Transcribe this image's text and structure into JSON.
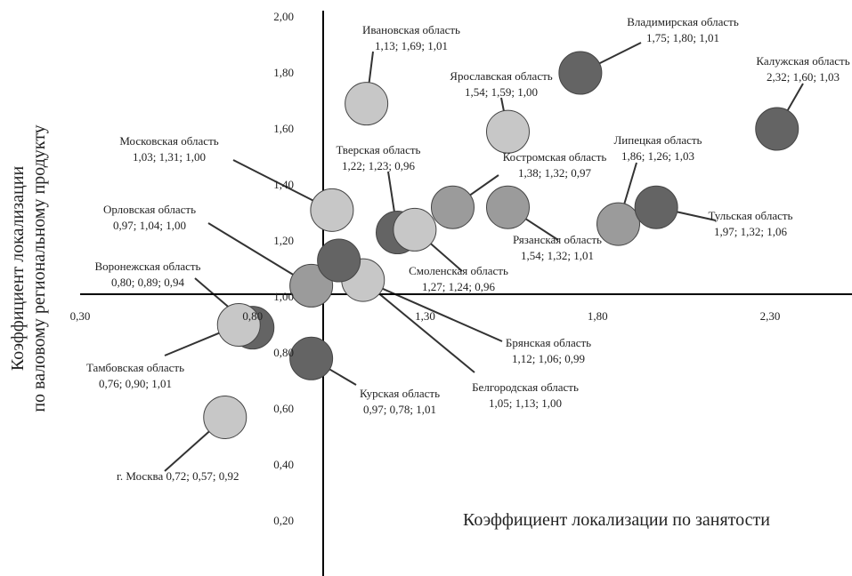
{
  "chart_data": {
    "type": "scatter",
    "xlabel": "Коэффициент локализации по занятости",
    "ylabel_lines": [
      "Коэффициент локализации",
      "по валовому региональному продукту"
    ],
    "xlim": [
      0.3,
      2.6
    ],
    "ylim": [
      0.0,
      2.0
    ],
    "x_ticks": [
      "0,30",
      "0,80",
      "1,30",
      "1,80",
      "2,30"
    ],
    "y_ticks": [
      "0,20",
      "0,40",
      "0,60",
      "0,80",
      "1,00",
      "1,20",
      "1,40",
      "1,60",
      "1,80",
      "2,00"
    ],
    "grid": false,
    "colors": {
      "light": "#c7c7c7",
      "mid": "#9b9b9b",
      "dark": "#646464",
      "outline": "#444444"
    },
    "points": [
      {
        "name": "Ивановская область",
        "values": "1,13; 1,69; 1,01",
        "x": 1.13,
        "y": 1.69,
        "shade": "light"
      },
      {
        "name": "Владимирская область",
        "values": "1,75; 1,80; 1,01",
        "x": 1.75,
        "y": 1.8,
        "shade": "dark"
      },
      {
        "name": "Калужская область",
        "values": "2,32; 1,60; 1,03",
        "x": 2.32,
        "y": 1.6,
        "shade": "dark"
      },
      {
        "name": "Ярославская область",
        "values": "1,54; 1,59; 1,00",
        "x": 1.54,
        "y": 1.59,
        "shade": "light"
      },
      {
        "name": "Московская область",
        "values": "1,03; 1,31; 1,00",
        "x": 1.03,
        "y": 1.31,
        "shade": "light"
      },
      {
        "name": "Тверская область",
        "values": "1,22; 1,23; 0,96",
        "x": 1.22,
        "y": 1.23,
        "shade": "dark"
      },
      {
        "name": "Костромская область",
        "values": "1,38; 1,32; 0,97",
        "x": 1.38,
        "y": 1.32,
        "shade": "mid"
      },
      {
        "name": "Липецкая область",
        "values": "1,86; 1,26; 1,03",
        "x": 1.86,
        "y": 1.26,
        "shade": "mid"
      },
      {
        "name": "Тульская область",
        "values": "1,97; 1,32; 1,06",
        "x": 1.97,
        "y": 1.32,
        "shade": "dark"
      },
      {
        "name": "Рязанская область",
        "values": "1,54; 1,32; 1,01",
        "x": 1.54,
        "y": 1.32,
        "shade": "mid"
      },
      {
        "name": "Смоленская область",
        "values": "1,27; 1,24; 0,96",
        "x": 1.27,
        "y": 1.24,
        "shade": "light"
      },
      {
        "name": "Орловская область",
        "values": "0,97; 1,04; 1,00",
        "x": 0.97,
        "y": 1.04,
        "shade": "mid"
      },
      {
        "name": "Воронежская область",
        "values": "0,80; 0,89; 0,94",
        "x": 0.8,
        "y": 0.89,
        "shade": "dark"
      },
      {
        "name": "Тамбовская область",
        "values": "0,76; 0,90; 1,01",
        "x": 0.76,
        "y": 0.9,
        "shade": "light"
      },
      {
        "name": "Брянская область",
        "values": "1,12; 1,06; 0,99",
        "x": 1.12,
        "y": 1.06,
        "shade": "light"
      },
      {
        "name": "Белгородская область",
        "values": "1,05; 1,13; 1,00",
        "x": 1.05,
        "y": 1.13,
        "shade": "dark"
      },
      {
        "name": "Курская область",
        "values": "0,97; 0,78; 1,01",
        "x": 0.97,
        "y": 0.78,
        "shade": "dark"
      },
      {
        "name": "г. Москва",
        "values": "0,72; 0,57; 0,92",
        "x": 0.72,
        "y": 0.57,
        "shade": "light"
      }
    ]
  }
}
